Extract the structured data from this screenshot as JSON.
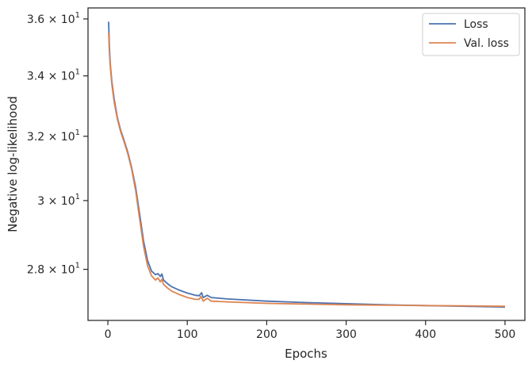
{
  "chart_data": {
    "type": "line",
    "title": "",
    "xlabel": "Epochs",
    "ylabel": "Negative log-likelihood",
    "xlim": [
      -25,
      525
    ],
    "ylim": [
      26.6,
      36.4
    ],
    "y_scale": "log",
    "grid": false,
    "legend_position": "top-right",
    "x_ticks": [
      0,
      100,
      200,
      300,
      400,
      500
    ],
    "x_tick_labels": [
      "0",
      "100",
      "200",
      "300",
      "400",
      "500"
    ],
    "y_ticks": [
      {
        "value": 28,
        "mantissa": "2.8",
        "base": "10",
        "exponent": "1"
      },
      {
        "value": 30,
        "mantissa": "3",
        "base": "10",
        "exponent": "1"
      },
      {
        "value": 32,
        "mantissa": "3.2",
        "base": "10",
        "exponent": "1"
      },
      {
        "value": 34,
        "mantissa": "3.4",
        "base": "10",
        "exponent": "1"
      },
      {
        "value": 36,
        "mantissa": "3.6",
        "base": "10",
        "exponent": "1"
      }
    ],
    "times_sign": "×",
    "series": [
      {
        "name": "Loss",
        "color": "#4c72b0",
        "points": [
          [
            1,
            35.9
          ],
          [
            2,
            35.0
          ],
          [
            3,
            34.4
          ],
          [
            5,
            33.8
          ],
          [
            8,
            33.2
          ],
          [
            12,
            32.6
          ],
          [
            16,
            32.2
          ],
          [
            20,
            31.9
          ],
          [
            25,
            31.5
          ],
          [
            30,
            31.0
          ],
          [
            35,
            30.4
          ],
          [
            40,
            29.6
          ],
          [
            45,
            28.8
          ],
          [
            50,
            28.25
          ],
          [
            55,
            27.95
          ],
          [
            60,
            27.85
          ],
          [
            63,
            27.88
          ],
          [
            66,
            27.8
          ],
          [
            68,
            27.87
          ],
          [
            70,
            27.7
          ],
          [
            75,
            27.6
          ],
          [
            80,
            27.52
          ],
          [
            90,
            27.42
          ],
          [
            100,
            27.34
          ],
          [
            110,
            27.28
          ],
          [
            115,
            27.27
          ],
          [
            118,
            27.35
          ],
          [
            120,
            27.22
          ],
          [
            125,
            27.28
          ],
          [
            130,
            27.22
          ],
          [
            150,
            27.18
          ],
          [
            200,
            27.12
          ],
          [
            250,
            27.08
          ],
          [
            300,
            27.05
          ],
          [
            350,
            27.02
          ],
          [
            400,
            27.0
          ],
          [
            450,
            26.98
          ],
          [
            500,
            26.96
          ]
        ]
      },
      {
        "name": "Val. loss",
        "color": "#dd8452",
        "points": [
          [
            1,
            35.5
          ],
          [
            2,
            34.8
          ],
          [
            3,
            34.3
          ],
          [
            5,
            33.7
          ],
          [
            8,
            33.1
          ],
          [
            12,
            32.55
          ],
          [
            16,
            32.15
          ],
          [
            20,
            31.85
          ],
          [
            25,
            31.45
          ],
          [
            30,
            30.95
          ],
          [
            35,
            30.3
          ],
          [
            40,
            29.45
          ],
          [
            45,
            28.65
          ],
          [
            50,
            28.1
          ],
          [
            55,
            27.82
          ],
          [
            60,
            27.7
          ],
          [
            63,
            27.76
          ],
          [
            66,
            27.65
          ],
          [
            68,
            27.72
          ],
          [
            70,
            27.58
          ],
          [
            75,
            27.48
          ],
          [
            80,
            27.4
          ],
          [
            90,
            27.3
          ],
          [
            100,
            27.22
          ],
          [
            110,
            27.17
          ],
          [
            115,
            27.17
          ],
          [
            117,
            27.25
          ],
          [
            120,
            27.12
          ],
          [
            125,
            27.2
          ],
          [
            130,
            27.12
          ],
          [
            150,
            27.1
          ],
          [
            200,
            27.06
          ],
          [
            250,
            27.04
          ],
          [
            300,
            27.02
          ],
          [
            350,
            27.01
          ],
          [
            400,
            27.0
          ],
          [
            450,
            26.99
          ],
          [
            500,
            26.98
          ]
        ]
      }
    ]
  }
}
